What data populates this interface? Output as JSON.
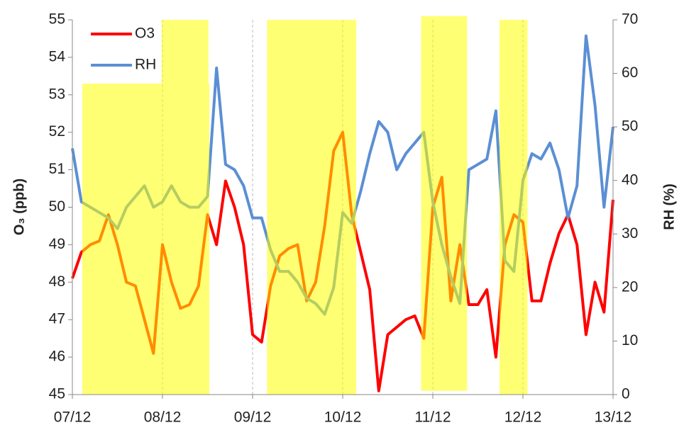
{
  "chart_data": {
    "type": "line",
    "x": [
      0,
      0.1,
      0.2,
      0.3,
      0.4,
      0.5,
      0.6,
      0.7,
      0.8,
      0.9,
      1,
      1.1,
      1.2,
      1.3,
      1.4,
      1.5,
      1.6,
      1.7,
      1.8,
      1.9,
      2,
      2.1,
      2.2,
      2.3,
      2.4,
      2.5,
      2.6,
      2.7,
      2.8,
      2.9,
      3,
      3.1,
      3.2,
      3.3,
      3.4,
      3.5,
      3.6,
      3.7,
      3.8,
      3.9,
      4,
      4.1,
      4.2,
      4.3,
      4.4,
      4.5,
      4.6,
      4.7,
      4.8,
      4.9,
      5,
      5.1,
      5.2,
      5.3,
      5.4,
      5.5,
      5.6,
      5.7,
      5.8,
      5.9,
      6
    ],
    "series": [
      {
        "name": "O3",
        "color": "#ff0000",
        "axis": "y",
        "values": [
          48.1,
          48.8,
          49.0,
          49.1,
          49.8,
          49.0,
          48.0,
          47.9,
          47.0,
          46.1,
          49.0,
          48.0,
          47.3,
          47.4,
          47.9,
          49.8,
          49.0,
          50.7,
          50.0,
          49.0,
          46.6,
          46.4,
          47.9,
          48.7,
          48.9,
          49.0,
          47.5,
          48.0,
          49.5,
          51.5,
          52.0,
          49.8,
          48.8,
          47.8,
          45.1,
          46.6,
          46.8,
          47.0,
          47.1,
          46.5,
          50.0,
          50.8,
          47.5,
          49.0,
          47.4,
          47.4,
          47.8,
          46.0,
          49.0,
          49.8,
          49.6,
          47.5,
          47.5,
          48.5,
          49.3,
          49.8,
          49.0,
          46.6,
          48.0,
          47.2,
          50.2
        ]
      },
      {
        "name": "RH",
        "color": "#5b8fd4",
        "axis": "y2",
        "values": [
          46,
          36,
          35,
          34,
          33,
          31,
          35,
          37,
          39,
          35,
          36,
          39,
          36,
          35,
          35,
          37,
          61,
          43,
          42,
          39,
          33,
          33,
          27,
          23,
          23,
          21,
          18,
          17,
          15,
          20,
          34,
          32,
          38,
          45,
          51,
          49,
          42,
          45,
          47,
          49,
          36,
          28,
          22,
          17,
          42,
          43,
          44,
          53,
          25,
          23,
          40,
          45,
          44,
          47,
          42,
          33,
          39,
          67,
          54,
          35,
          50
        ]
      }
    ],
    "xlim": [
      0,
      6
    ],
    "xticks": [
      {
        "value": 0,
        "label": "07/12"
      },
      {
        "value": 1,
        "label": "08/12"
      },
      {
        "value": 2,
        "label": "09/12"
      },
      {
        "value": 3,
        "label": "10/12"
      },
      {
        "value": 4,
        "label": "11/12"
      },
      {
        "value": 5,
        "label": "12/12"
      },
      {
        "value": 6,
        "label": "13/12"
      }
    ],
    "ylim": [
      45,
      55
    ],
    "yticks": [
      45,
      46,
      47,
      48,
      49,
      50,
      51,
      52,
      53,
      54,
      55
    ],
    "y2lim": [
      0,
      70
    ],
    "y2ticks": [
      0,
      10,
      20,
      30,
      40,
      50,
      60,
      70
    ],
    "ylabel": "O₃ (ppb)",
    "y2label": "RH (%)",
    "grid": true,
    "legend": "upper left",
    "shade_color": "#ffff00",
    "shaded_regions": [
      {
        "x": [
          0.11,
          1.52
        ],
        "y": [
          45,
          53.3
        ]
      },
      {
        "x": [
          0.99,
          1.51
        ],
        "y": [
          53.3,
          55
        ]
      },
      {
        "x": [
          2.16,
          3.15
        ],
        "y": [
          45,
          55
        ]
      },
      {
        "x": [
          3.87,
          4.38
        ],
        "y": [
          45.1,
          55.1
        ]
      },
      {
        "x": [
          4.74,
          5.05
        ],
        "y": [
          45,
          55
        ]
      }
    ]
  }
}
